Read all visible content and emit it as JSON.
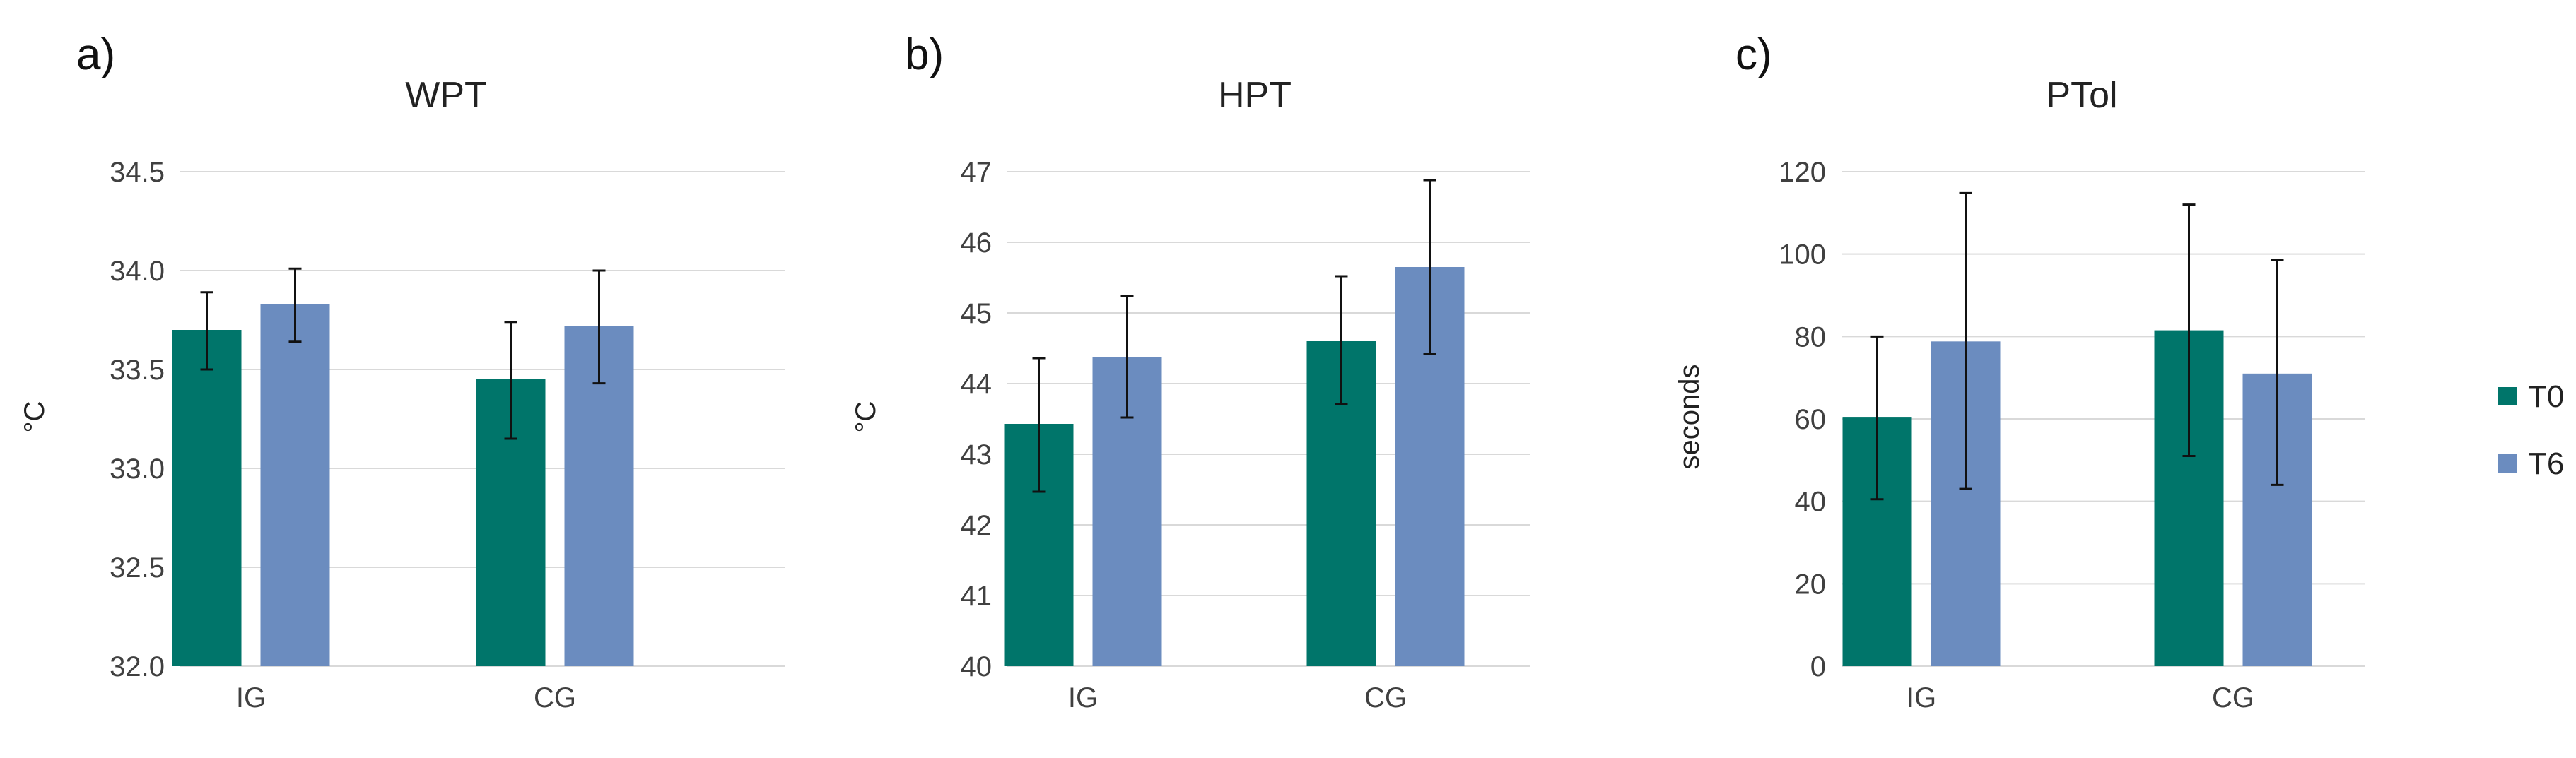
{
  "colors": {
    "T0": "#00756a",
    "T6": "#6b8cbf",
    "grid": "#d9d9d9"
  },
  "legend": [
    {
      "name": "T0",
      "color": "#00756a"
    },
    {
      "name": "T6",
      "color": "#6b8cbf"
    }
  ],
  "chart_data": [
    {
      "type": "bar",
      "panel": "a)",
      "title": "WPT",
      "ylabel": "°C",
      "xlabel": "",
      "categories": [
        "IG",
        "CG"
      ],
      "ylim": [
        32.0,
        34.5
      ],
      "yticks": [
        "32.0",
        "32.5",
        "33.0",
        "33.5",
        "34.0",
        "34.5"
      ],
      "series": [
        {
          "name": "T0",
          "values": [
            33.7,
            33.45
          ],
          "error_low": [
            33.5,
            33.15
          ],
          "error_high": [
            33.89,
            33.74
          ]
        },
        {
          "name": "T6",
          "values": [
            33.83,
            33.72
          ],
          "error_low": [
            33.64,
            33.43
          ],
          "error_high": [
            34.01,
            34.0
          ]
        }
      ]
    },
    {
      "type": "bar",
      "panel": "b)",
      "title": "HPT",
      "ylabel": "°C",
      "xlabel": "",
      "categories": [
        "IG",
        "CG"
      ],
      "ylim": [
        40,
        47
      ],
      "yticks": [
        "40",
        "41",
        "42",
        "43",
        "44",
        "45",
        "46",
        "47"
      ],
      "series": [
        {
          "name": "T0",
          "values": [
            43.43,
            44.6
          ],
          "error_low": [
            42.47,
            43.71
          ],
          "error_high": [
            44.36,
            45.52
          ]
        },
        {
          "name": "T6",
          "values": [
            44.37,
            45.65
          ],
          "error_low": [
            43.52,
            44.42
          ],
          "error_high": [
            45.24,
            46.88
          ]
        }
      ]
    },
    {
      "type": "bar",
      "panel": "c)",
      "title": "PTol",
      "ylabel": "seconds",
      "xlabel": "",
      "categories": [
        "IG",
        "CG"
      ],
      "ylim": [
        0,
        120
      ],
      "yticks": [
        "0",
        "20",
        "40",
        "60",
        "80",
        "100",
        "120"
      ],
      "series": [
        {
          "name": "T0",
          "values": [
            60.5,
            81.5
          ],
          "error_low": [
            40.5,
            51
          ],
          "error_high": [
            80,
            112
          ]
        },
        {
          "name": "T6",
          "values": [
            78.8,
            71
          ],
          "error_low": [
            43,
            44
          ],
          "error_high": [
            114.8,
            98.5
          ]
        }
      ]
    }
  ]
}
